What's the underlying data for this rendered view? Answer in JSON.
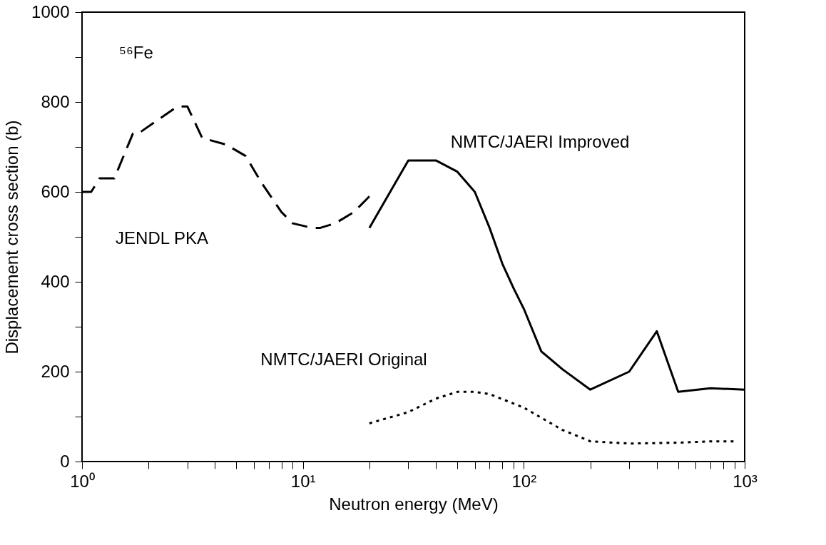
{
  "chart_data": {
    "type": "line",
    "xlabel": "Neutron energy (MeV)",
    "ylabel": "Displacement cross section (b)",
    "annotations": [
      "⁵⁶Fe"
    ],
    "log": "x",
    "grid": false,
    "marker": "none",
    "xlim": [
      1,
      1000
    ],
    "ylim": [
      0,
      1000
    ],
    "xticks": [
      {
        "value": 1,
        "label": "10⁰"
      },
      {
        "value": 2,
        "label": null
      },
      {
        "value": 3,
        "label": null
      },
      {
        "value": 4,
        "label": null
      },
      {
        "value": 5,
        "label": null
      },
      {
        "value": 6,
        "label": null
      },
      {
        "value": 7,
        "label": null
      },
      {
        "value": 8,
        "label": null
      },
      {
        "value": 9,
        "label": null
      },
      {
        "value": 10,
        "label": "10¹"
      },
      {
        "value": 20,
        "label": null
      },
      {
        "value": 30,
        "label": null
      },
      {
        "value": 40,
        "label": null
      },
      {
        "value": 50,
        "label": null
      },
      {
        "value": 60,
        "label": null
      },
      {
        "value": 70,
        "label": null
      },
      {
        "value": 80,
        "label": null
      },
      {
        "value": 90,
        "label": null
      },
      {
        "value": 100,
        "label": "10²"
      },
      {
        "value": 200,
        "label": null
      },
      {
        "value": 300,
        "label": null
      },
      {
        "value": 400,
        "label": null
      },
      {
        "value": 500,
        "label": null
      },
      {
        "value": 600,
        "label": null
      },
      {
        "value": 700,
        "label": null
      },
      {
        "value": 800,
        "label": null
      },
      {
        "value": 900,
        "label": null
      },
      {
        "value": 1000,
        "label": "10³"
      }
    ],
    "yticks": [
      0,
      {
        "value": 100,
        "label": null
      },
      200,
      {
        "value": 300,
        "label": null
      },
      400,
      {
        "value": 500,
        "label": null
      },
      600,
      {
        "value": 700,
        "label": null
      },
      800,
      {
        "value": 900,
        "label": null
      },
      1000
    ],
    "series": [
      {
        "name": "JENDL PKA",
        "color": "#000000",
        "line_style": "dashed",
        "x": [
          1,
          1.1,
          1.2,
          1.4,
          1.7,
          1.8,
          2.2,
          2.7,
          3.0,
          3.5,
          4.5,
          5.5,
          6.5,
          8,
          9,
          11,
          12,
          14,
          17,
          20
        ],
        "values": [
          600,
          600,
          630,
          630,
          730,
          730,
          760,
          790,
          790,
          720,
          705,
          680,
          620,
          555,
          530,
          520,
          520,
          530,
          555,
          590
        ]
      },
      {
        "name": "NMTC/JAERI Improved",
        "color": "#000000",
        "line_style": "solid",
        "x": [
          20,
          30,
          40,
          50,
          60,
          70,
          80,
          90,
          100,
          120,
          150,
          200,
          300,
          400,
          500,
          700,
          1000
        ],
        "values": [
          520,
          670,
          670,
          645,
          600,
          520,
          440,
          385,
          340,
          245,
          205,
          160,
          200,
          290,
          155,
          163,
          160
        ]
      },
      {
        "name": "NMTC/JAERI Original",
        "color": "#000000",
        "line_style": "dotted",
        "x": [
          20,
          30,
          40,
          50,
          60,
          70,
          100,
          150,
          200,
          300,
          500,
          700,
          900
        ],
        "values": [
          85,
          110,
          140,
          155,
          155,
          150,
          120,
          70,
          45,
          40,
          42,
          45,
          45
        ]
      }
    ]
  }
}
